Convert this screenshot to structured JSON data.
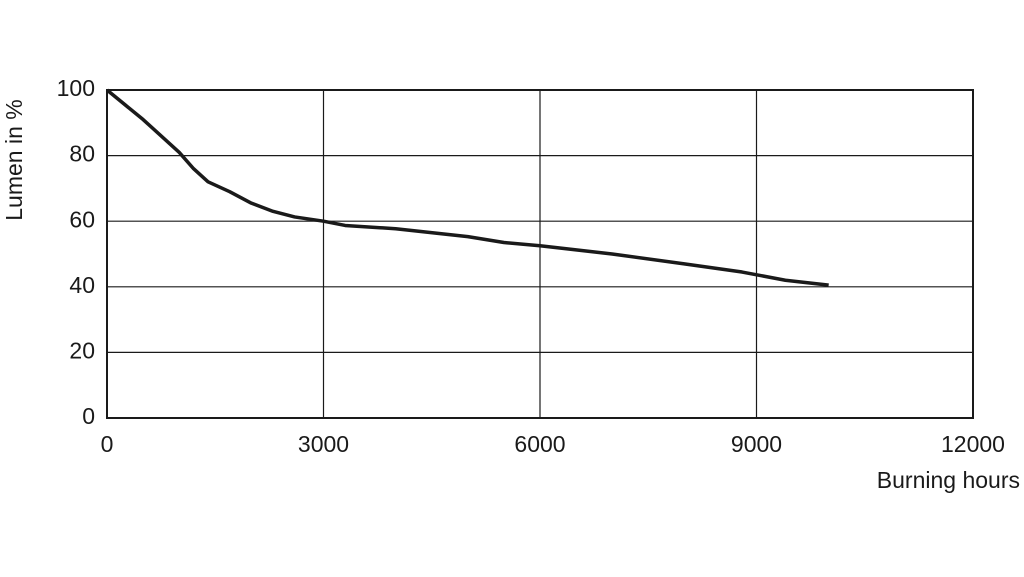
{
  "chart_data": {
    "type": "line",
    "x_label": "Burning hours",
    "y_label": "Lumen in %",
    "x": [
      0,
      500,
      1000,
      1200,
      1400,
      1700,
      2000,
      2300,
      2600,
      3000,
      3300,
      4000,
      5000,
      5500,
      6000,
      7000,
      8000,
      8800,
      9400,
      10000
    ],
    "series": [
      {
        "color": "#1a1a1a",
        "values": [
          100,
          91,
          81,
          76,
          72,
          69,
          65.5,
          63,
          61.3,
          60,
          58.7,
          57.7,
          55.3,
          53.5,
          52.5,
          50,
          47,
          44.5,
          42,
          40.5
        ]
      }
    ],
    "xlim": [
      0,
      12000
    ],
    "xticks": [
      0,
      3000,
      6000,
      9000,
      12000
    ],
    "ylim": [
      0,
      100
    ],
    "yticks": [
      0,
      20,
      40,
      60,
      80,
      100
    ],
    "grid": true
  }
}
